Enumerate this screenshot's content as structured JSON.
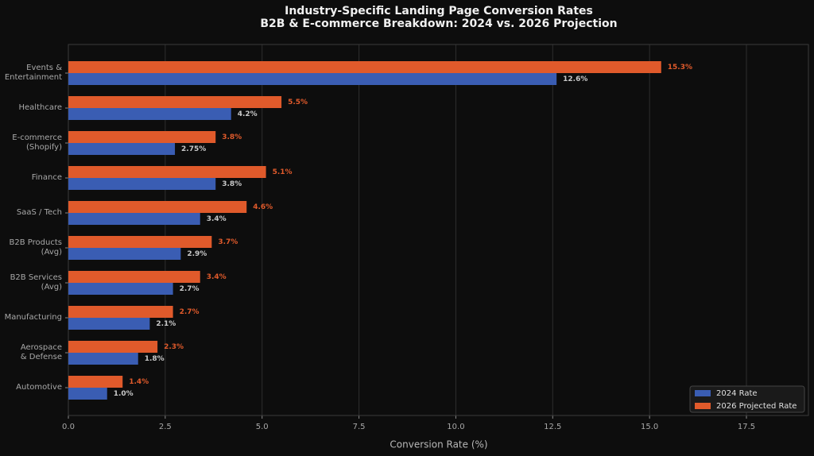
{
  "chart_data": {
    "type": "barh",
    "title": "Industry-Specific Landing Page Conversion Rates",
    "subtitle": "B2B & E-commerce Breakdown: 2024 vs. 2026 Projection",
    "xlabel": "Conversion Rate (%)",
    "categories": [
      "Events &\nEntertainment",
      "Healthcare",
      "E-commerce\n(Shopify)",
      "Finance",
      "SaaS / Tech",
      "B2B Products\n(Avg)",
      "B2B Services\n(Avg)",
      "Manufacturing",
      "Aerospace\n& Defense",
      "Automotive"
    ],
    "series": [
      {
        "name": "2024 Rate",
        "color": "#3a5db3",
        "values": [
          12.6,
          4.2,
          2.75,
          3.8,
          3.4,
          2.9,
          2.7,
          2.1,
          1.8,
          1.0
        ],
        "value_labels": [
          "12.6%",
          "4.2%",
          "2.75%",
          "3.8%",
          "3.4%",
          "2.9%",
          "2.7%",
          "2.1%",
          "1.8%",
          "1.0%"
        ]
      },
      {
        "name": "2026 Projected Rate",
        "color": "#e05a2b",
        "values": [
          15.3,
          5.5,
          3.8,
          5.1,
          4.6,
          3.7,
          3.4,
          2.7,
          2.3,
          1.4
        ],
        "value_labels": [
          "15.3%",
          "5.5%",
          "3.8%",
          "5.1%",
          "4.6%",
          "3.7%",
          "3.4%",
          "2.7%",
          "2.3%",
          "1.4%"
        ]
      }
    ],
    "xlim": [
      0,
      19.1
    ],
    "xticks": [
      {
        "value": 0,
        "label": "0.0"
      },
      {
        "value": 2.5,
        "label": "2.5"
      },
      {
        "value": 5,
        "label": "5.0"
      },
      {
        "value": 7.5,
        "label": "7.5"
      },
      {
        "value": 10,
        "label": "10.0"
      },
      {
        "value": 12.5,
        "label": "12.5"
      },
      {
        "value": 15,
        "label": "15.0"
      },
      {
        "value": 17.5,
        "label": "17.5"
      }
    ],
    "grid": true,
    "legend": "lower right"
  }
}
